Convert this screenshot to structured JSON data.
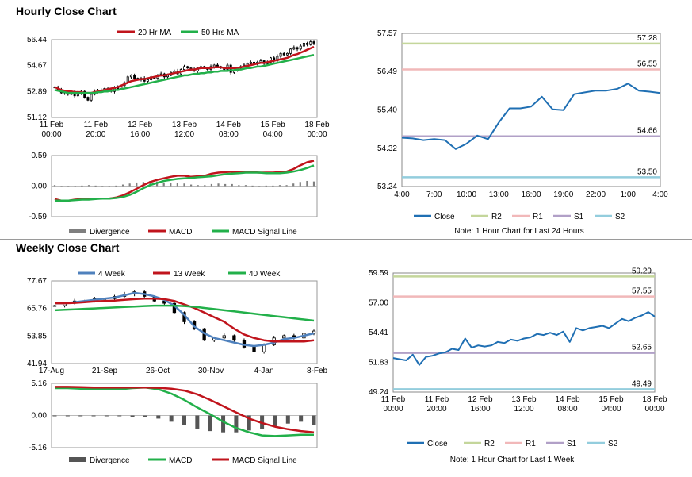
{
  "hourly": {
    "title": "Hourly Close Chart",
    "price": {
      "type": "candlestick",
      "legend": [
        "20 Hr MA",
        "50 Hrs MA"
      ],
      "colors": {
        "ma20": "#c0141c",
        "ma50": "#22b04a"
      },
      "yticks": [
        "56.44",
        "54.67",
        "52.89",
        "51.12"
      ],
      "ylim": [
        51.12,
        56.44
      ],
      "xticks": [
        [
          "11 Feb",
          "00:00"
        ],
        [
          "11 Feb",
          "20:00"
        ],
        [
          "12 Feb",
          "16:00"
        ],
        [
          "13 Feb",
          "12:00"
        ],
        [
          "14 Feb",
          "08:00"
        ],
        [
          "15 Feb",
          "04:00"
        ],
        [
          "18 Feb",
          "00:00"
        ]
      ],
      "close": [
        53.2,
        53.0,
        52.8,
        52.9,
        52.7,
        52.9,
        52.6,
        52.8,
        52.9,
        52.5,
        52.3,
        52.7,
        52.9,
        53.0,
        52.9,
        53.1,
        53.0,
        52.9,
        53.2,
        53.1,
        53.3,
        53.5,
        53.9,
        54.0,
        53.8,
        53.7,
        53.8,
        53.6,
        53.7,
        53.9,
        53.8,
        54.0,
        54.1,
        53.9,
        54.0,
        54.2,
        54.3,
        54.1,
        54.4,
        54.6,
        54.5,
        54.4,
        54.3,
        54.5,
        54.6,
        54.5,
        54.4,
        54.6,
        54.7,
        54.6,
        54.5,
        54.4,
        54.7,
        54.2,
        54.3,
        54.5,
        54.6,
        54.7,
        54.8,
        54.9,
        54.8,
        54.9,
        55.0,
        54.8,
        54.9,
        55.2,
        55.0,
        55.3,
        55.5,
        55.4,
        55.5,
        55.8,
        55.9,
        55.8,
        56.0,
        56.2,
        56.1,
        56.3,
        56.2
      ],
      "ma20": [
        53.2,
        53.1,
        53.0,
        52.95,
        52.9,
        52.9,
        52.85,
        52.85,
        52.85,
        52.8,
        52.8,
        52.8,
        52.85,
        52.9,
        52.95,
        53.0,
        53.05,
        53.1,
        53.15,
        53.2,
        53.3,
        53.4,
        53.5,
        53.6,
        53.65,
        53.7,
        53.75,
        53.75,
        53.8,
        53.85,
        53.9,
        53.95,
        54.0,
        54.0,
        54.05,
        54.1,
        54.15,
        54.2,
        54.25,
        54.3,
        54.35,
        54.4,
        54.4,
        54.45,
        54.5,
        54.5,
        54.5,
        54.5,
        54.55,
        54.55,
        54.55,
        54.5,
        54.5,
        54.5,
        54.5,
        54.5,
        54.55,
        54.6,
        54.65,
        54.7,
        54.75,
        54.8,
        54.85,
        54.85,
        54.9,
        54.95,
        55.0,
        55.05,
        55.1,
        55.15,
        55.2,
        55.3,
        55.4,
        55.45,
        55.55,
        55.65,
        55.75,
        55.85,
        55.95
      ],
      "ma50": [
        53.0,
        52.95,
        52.9,
        52.85,
        52.8,
        52.8,
        52.8,
        52.8,
        52.8,
        52.8,
        52.8,
        52.8,
        52.8,
        52.85,
        52.85,
        52.9,
        52.9,
        52.95,
        53.0,
        53.0,
        53.05,
        53.1,
        53.15,
        53.2,
        53.25,
        53.3,
        53.35,
        53.4,
        53.45,
        53.5,
        53.55,
        53.6,
        53.65,
        53.7,
        53.75,
        53.8,
        53.85,
        53.9,
        53.95,
        54.0,
        54.0,
        54.05,
        54.1,
        54.1,
        54.15,
        54.15,
        54.2,
        54.2,
        54.25,
        54.25,
        54.3,
        54.3,
        54.3,
        54.35,
        54.35,
        54.4,
        54.4,
        54.45,
        54.5,
        54.5,
        54.55,
        54.6,
        54.6,
        54.65,
        54.7,
        54.75,
        54.8,
        54.85,
        54.9,
        54.95,
        55.0,
        55.05,
        55.1,
        55.15,
        55.2,
        55.25,
        55.3,
        55.35,
        55.4
      ]
    },
    "macd": {
      "type": "line+bar",
      "yticks": [
        "0.59",
        "0.00",
        "-0.59"
      ],
      "ylim": [
        -0.59,
        0.59
      ],
      "legend": [
        "Divergence",
        "MACD",
        "MACD Signal Line"
      ],
      "colors": {
        "divergence": "#7f7f7f",
        "macd": "#c0141c",
        "signal": "#22b04a"
      },
      "macd": [
        -0.25,
        -0.28,
        -0.28,
        -0.26,
        -0.25,
        -0.24,
        -0.24,
        -0.24,
        -0.24,
        -0.22,
        -0.18,
        -0.12,
        -0.05,
        0.02,
        0.08,
        0.12,
        0.15,
        0.18,
        0.2,
        0.2,
        0.18,
        0.19,
        0.2,
        0.24,
        0.26,
        0.27,
        0.28,
        0.27,
        0.28,
        0.27,
        0.26,
        0.26,
        0.26,
        0.27,
        0.28,
        0.33,
        0.4,
        0.46,
        0.49
      ],
      "signal": [
        -0.28,
        -0.28,
        -0.28,
        -0.27,
        -0.26,
        -0.26,
        -0.25,
        -0.24,
        -0.24,
        -0.23,
        -0.21,
        -0.17,
        -0.11,
        -0.04,
        0.02,
        0.06,
        0.1,
        0.12,
        0.14,
        0.15,
        0.16,
        0.17,
        0.18,
        0.19,
        0.21,
        0.23,
        0.24,
        0.25,
        0.26,
        0.26,
        0.26,
        0.25,
        0.25,
        0.25,
        0.26,
        0.28,
        0.31,
        0.35,
        0.4
      ],
      "divergence": [
        0.02,
        0.0,
        -0.01,
        0.0,
        0.01,
        0.02,
        0.01,
        0.0,
        0.0,
        0.01,
        0.03,
        0.05,
        0.07,
        0.08,
        0.1,
        0.09,
        0.07,
        0.06,
        0.06,
        0.05,
        0.03,
        0.02,
        0.02,
        0.04,
        0.05,
        0.04,
        0.04,
        0.02,
        0.02,
        0.01,
        0.0,
        0.01,
        0.01,
        0.02,
        0.02,
        0.05,
        0.08,
        0.1,
        0.09
      ]
    },
    "pivot": {
      "type": "line",
      "yticks": [
        "57.57",
        "56.49",
        "55.40",
        "54.32",
        "53.24"
      ],
      "ylim": [
        53.24,
        57.57
      ],
      "xticks": [
        "4:00",
        "7:00",
        "10:00",
        "13:00",
        "16:00",
        "19:00",
        "22:00",
        "1:00",
        "4:00"
      ],
      "close": [
        54.62,
        54.6,
        54.55,
        54.58,
        54.55,
        54.3,
        54.45,
        54.68,
        54.58,
        55.05,
        55.45,
        55.45,
        55.5,
        55.78,
        55.42,
        55.4,
        55.85,
        55.9,
        55.95,
        55.95,
        56.0,
        56.15,
        55.95,
        55.92,
        55.88
      ],
      "levels": [
        {
          "name": "R2",
          "value": 57.28,
          "label": "57.28",
          "color": "#c4d69b"
        },
        {
          "name": "R1",
          "value": 56.55,
          "label": "56.55",
          "color": "#f1b8b9"
        },
        {
          "name": "S1",
          "value": 54.66,
          "label": "54.66",
          "color": "#b1a0c7"
        },
        {
          "name": "S2",
          "value": 53.5,
          "label": "53.50",
          "color": "#93cddd"
        }
      ],
      "close_color": "#1f6fb3",
      "legend": [
        "Close",
        "R2",
        "R1",
        "S1",
        "S2"
      ],
      "note": "Note: 1 Hour Chart for Last 24 Hours"
    }
  },
  "weekly": {
    "title": "Weekly Close Chart",
    "price": {
      "type": "candlestick",
      "legend": [
        "4 Week",
        "13 Week",
        "40 Week"
      ],
      "colors": {
        "wk4": "#4f81bd",
        "wk13": "#c0141c",
        "wk40": "#22b04a"
      },
      "yticks": [
        "77.67",
        "65.76",
        "53.85",
        "41.94"
      ],
      "ylim": [
        41.94,
        77.67
      ],
      "xticks": [
        "17-Aug",
        "21-Sep",
        "26-Oct",
        "30-Nov",
        "4-Jan",
        "8-Feb"
      ],
      "close": [
        67,
        68,
        69,
        69,
        70,
        70,
        71,
        72,
        73,
        71,
        69,
        68,
        64,
        60,
        57,
        52,
        53,
        54,
        52,
        49,
        47,
        50,
        53,
        54,
        53,
        55,
        56
      ],
      "wk4": [
        68,
        68,
        68.5,
        69,
        69.5,
        70,
        70.5,
        71.5,
        72.5,
        72,
        71,
        69.5,
        67,
        63,
        58,
        55,
        53,
        52,
        51,
        50,
        49.5,
        50,
        51,
        52.5,
        53,
        54,
        55
      ],
      "wk13": [
        68,
        68,
        68.2,
        68.5,
        68.8,
        69,
        69.2,
        69.5,
        69.8,
        70,
        70,
        69.8,
        69,
        67.5,
        66,
        64,
        62,
        60,
        57,
        54.5,
        53,
        52,
        51.5,
        51.5,
        51.5,
        51.5,
        52
      ],
      "wk40": [
        65,
        65.2,
        65.4,
        65.6,
        65.8,
        66,
        66.2,
        66.4,
        66.6,
        66.8,
        67,
        67,
        67,
        66.8,
        66.5,
        66,
        65.5,
        65,
        64.5,
        64,
        63.5,
        63,
        62.5,
        62,
        61.5,
        61,
        60.5
      ]
    },
    "macd": {
      "type": "line+bar",
      "yticks": [
        "5.16",
        "0.00",
        "-5.16"
      ],
      "ylim": [
        -5.16,
        5.16
      ],
      "legend": [
        "Divergence",
        "MACD",
        "MACD Signal Line"
      ],
      "colors": {
        "divergence": "#555555",
        "macd": "#22b04a",
        "signal": "#c0141c"
      },
      "macd": [
        4.4,
        4.4,
        4.3,
        4.3,
        4.2,
        4.2,
        4.4,
        4.5,
        4.2,
        3.5,
        2.5,
        1.3,
        0.2,
        -1.0,
        -2.0,
        -2.7,
        -3.2,
        -3.3,
        -3.2,
        -3.1,
        -3.1
      ],
      "signal": [
        4.6,
        4.6,
        4.55,
        4.5,
        4.5,
        4.5,
        4.5,
        4.5,
        4.45,
        4.3,
        4.0,
        3.4,
        2.5,
        1.5,
        0.5,
        -0.5,
        -1.2,
        -1.8,
        -2.2,
        -2.5,
        -2.7
      ],
      "divergence": [
        -0.1,
        -0.1,
        -0.1,
        -0.1,
        -0.1,
        -0.1,
        -0.2,
        -0.3,
        -0.5,
        -1.0,
        -1.5,
        -2.1,
        -2.5,
        -2.7,
        -2.7,
        -2.4,
        -2.1,
        -1.7,
        -1.3,
        -1.0,
        -1.5
      ]
    },
    "pivot": {
      "type": "line",
      "yticks": [
        "59.59",
        "57.00",
        "54.41",
        "51.83",
        "49.24"
      ],
      "ylim": [
        49.24,
        59.59
      ],
      "xticks": [
        [
          "11 Feb",
          "00:00"
        ],
        [
          "11 Feb",
          "20:00"
        ],
        [
          "12 Feb",
          "16:00"
        ],
        [
          "13 Feb",
          "12:00"
        ],
        [
          "14 Feb",
          "08:00"
        ],
        [
          "15 Feb",
          "04:00"
        ],
        [
          "18 Feb",
          "00:00"
        ]
      ],
      "close": [
        52.2,
        52.1,
        52.0,
        52.5,
        51.6,
        52.3,
        52.4,
        52.6,
        52.7,
        53.0,
        52.9,
        53.9,
        53.1,
        53.3,
        53.2,
        53.3,
        53.6,
        53.5,
        53.8,
        53.7,
        53.9,
        54.0,
        54.3,
        54.2,
        54.4,
        54.2,
        54.5,
        53.6,
        54.8,
        54.6,
        54.8,
        54.9,
        55.0,
        54.8,
        55.2,
        55.6,
        55.4,
        55.7,
        55.9,
        56.2,
        55.8
      ],
      "levels": [
        {
          "name": "R2",
          "value": 59.29,
          "label": "59.29",
          "color": "#c4d69b"
        },
        {
          "name": "R1",
          "value": 57.55,
          "label": "57.55",
          "color": "#f1b8b9"
        },
        {
          "name": "S1",
          "value": 52.65,
          "label": "52.65",
          "color": "#b1a0c7"
        },
        {
          "name": "S2",
          "value": 49.49,
          "label": "49.49",
          "color": "#93cddd"
        }
      ],
      "close_color": "#1f6fb3",
      "legend": [
        "Close",
        "R2",
        "R1",
        "S1",
        "S2"
      ],
      "note": "Note: 1 Hour Chart for Last 1 Week"
    }
  }
}
